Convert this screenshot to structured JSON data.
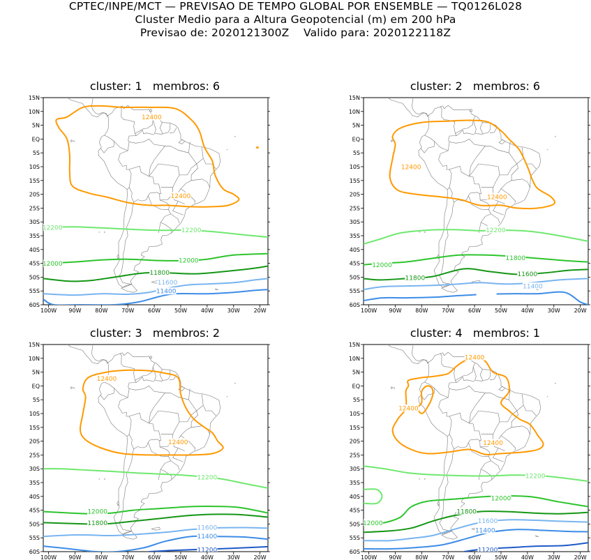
{
  "header": {
    "line1": "CPTEC/INPE/MCT — PREVISAO DE TEMPO GLOBAL POR ENSEMBLE — TQ0126L028",
    "line2": "Cluster Medio para a Altura Geopotencial (m) em 200 hPa",
    "line3": "Previsao de: 2020121300Z    Valido para: 2020122118Z"
  },
  "axes": {
    "lat_ticks": [
      "15N",
      "10N",
      "5N",
      "EQ",
      "5S",
      "10S",
      "15S",
      "20S",
      "25S",
      "30S",
      "35S",
      "40S",
      "45S",
      "50S",
      "55S",
      "60S"
    ],
    "lon_ticks": [
      "100W",
      "90W",
      "80W",
      "70W",
      "60W",
      "50W",
      "40W",
      "30W",
      "20W"
    ]
  },
  "colors": {
    "c12400": "#ff9900",
    "c12200": "#6ee86e",
    "c12000": "#2cc42c",
    "c11800": "#149614",
    "c11600": "#78b4f0",
    "c11400": "#3c8ce6",
    "c11200": "#1e5ac8",
    "coast": "#8c8c8c"
  },
  "panels": [
    {
      "title": "cluster: 1   membros: 6",
      "labels": [
        "12400",
        "12400",
        "12200",
        "12200",
        "12000",
        "12000",
        "11800",
        "11600",
        "11400"
      ]
    },
    {
      "title": "cluster: 2   membros: 6",
      "labels": [
        "12400",
        "12400",
        "12200",
        "12000",
        "11800",
        "11800",
        "11600",
        "11400"
      ]
    },
    {
      "title": "cluster: 3   membros: 2",
      "labels": [
        "12400",
        "12400",
        "12200",
        "12000",
        "11800",
        "11600",
        "11400",
        "11200"
      ]
    },
    {
      "title": "cluster: 4   membros: 1",
      "labels": [
        "12400",
        "12400",
        "12400",
        "12200",
        "12000",
        "12000",
        "11800",
        "11600",
        "11400",
        "11200"
      ]
    }
  ]
}
